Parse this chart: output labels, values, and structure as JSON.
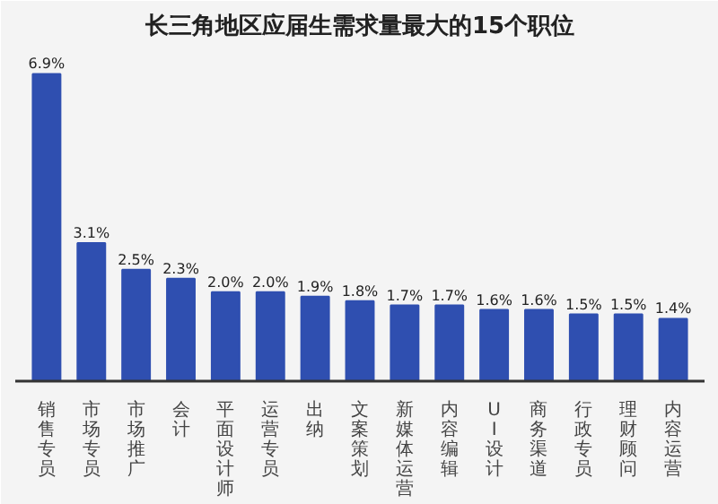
{
  "chart_data": {
    "type": "bar",
    "title": "长三角地区应届生需求量最大的15个职位",
    "categories": [
      "销售专员",
      "市场专员",
      "市场推广",
      "会计",
      "平面设计师",
      "运营专员",
      "出纳",
      "文案策划",
      "新媒体运营",
      "内容编辑",
      "UI设计",
      "商务渠道",
      "行政专员",
      "理财顾问",
      "内容运营"
    ],
    "values": [
      6.9,
      3.1,
      2.5,
      2.3,
      2.0,
      2.0,
      1.9,
      1.8,
      1.7,
      1.7,
      1.6,
      1.6,
      1.5,
      1.5,
      1.4
    ],
    "value_labels": [
      "6.9%",
      "3.1%",
      "2.5%",
      "2.3%",
      "2.0%",
      "2.0%",
      "1.9%",
      "1.8%",
      "1.7%",
      "1.7%",
      "1.6%",
      "1.6%",
      "1.5%",
      "1.5%",
      "1.4%"
    ],
    "color": "#2f4fb0"
  }
}
